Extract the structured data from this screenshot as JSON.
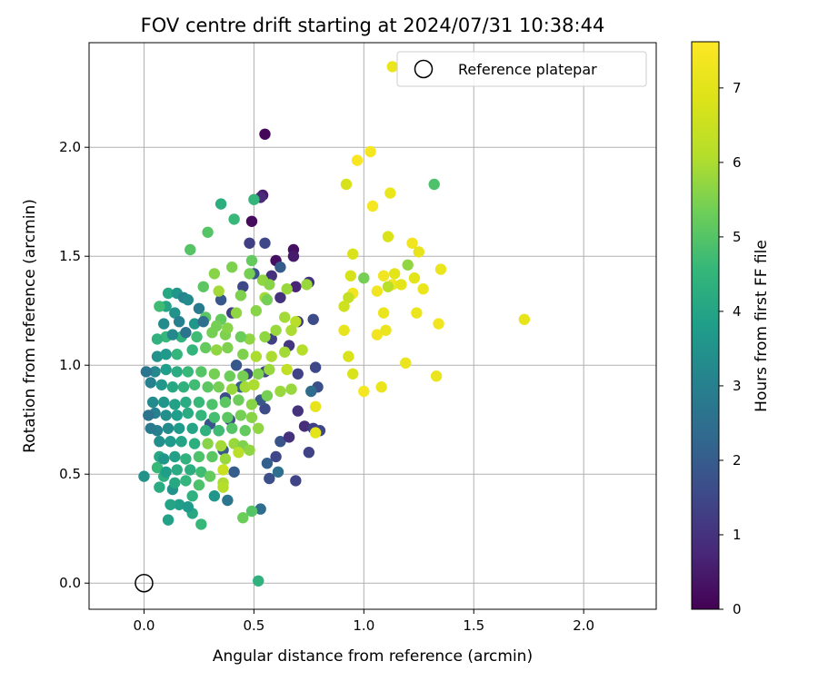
{
  "chart_data": {
    "type": "scatter",
    "title": "FOV centre drift starting at 2024/07/31 10:38:44",
    "xlabel": "Angular distance from reference (arcmin)",
    "ylabel": "Rotation from reference (arcmin)",
    "xlim": [
      -0.25,
      2.33
    ],
    "ylim": [
      -0.12,
      2.48
    ],
    "xticks": [
      "0.0",
      "0.5",
      "1.0",
      "1.5",
      "2.0"
    ],
    "yticks": [
      "0.0",
      "0.5",
      "1.0",
      "1.5",
      "2.0"
    ],
    "grid": true,
    "legend": {
      "placement": "top-right",
      "label": "Reference platepar"
    },
    "colorbar": {
      "label": "Hours from first FF file",
      "range": [
        0,
        7.62
      ],
      "ticks": [
        "0",
        "1",
        "2",
        "3",
        "4",
        "5",
        "6",
        "7"
      ],
      "colormap": "viridis"
    },
    "reference_point": {
      "x": 0.0,
      "y": 0.0
    },
    "points": [
      {
        "x": 0.55,
        "y": 2.06,
        "h": 0.1
      },
      {
        "x": 0.49,
        "y": 1.66,
        "h": 0.2
      },
      {
        "x": 0.6,
        "y": 1.48,
        "h": 0.3
      },
      {
        "x": 0.68,
        "y": 1.53,
        "h": 0.3
      },
      {
        "x": 0.68,
        "y": 1.5,
        "h": 0.5
      },
      {
        "x": 0.54,
        "y": 1.78,
        "h": 0.5
      },
      {
        "x": 0.53,
        "y": 1.77,
        "h": 0.8
      },
      {
        "x": 0.48,
        "y": 1.56,
        "h": 1.3
      },
      {
        "x": 0.55,
        "y": 1.56,
        "h": 1.5
      },
      {
        "x": 0.58,
        "y": 1.41,
        "h": 1.0
      },
      {
        "x": 0.69,
        "y": 1.36,
        "h": 0.7
      },
      {
        "x": 0.75,
        "y": 1.38,
        "h": 1.0
      },
      {
        "x": 0.7,
        "y": 1.2,
        "h": 1.2
      },
      {
        "x": 0.77,
        "y": 1.21,
        "h": 1.6
      },
      {
        "x": 0.62,
        "y": 1.31,
        "h": 1.0
      },
      {
        "x": 0.62,
        "y": 1.45,
        "h": 2.0
      },
      {
        "x": 0.5,
        "y": 1.42,
        "h": 1.8
      },
      {
        "x": 0.45,
        "y": 1.36,
        "h": 1.5
      },
      {
        "x": 0.4,
        "y": 1.24,
        "h": 1.3
      },
      {
        "x": 0.35,
        "y": 1.3,
        "h": 1.9
      },
      {
        "x": 0.58,
        "y": 1.12,
        "h": 1.3
      },
      {
        "x": 0.66,
        "y": 1.09,
        "h": 1.1
      },
      {
        "x": 0.7,
        "y": 0.96,
        "h": 1.4
      },
      {
        "x": 0.78,
        "y": 0.99,
        "h": 1.5
      },
      {
        "x": 0.79,
        "y": 0.9,
        "h": 1.7
      },
      {
        "x": 0.76,
        "y": 0.88,
        "h": 2.4
      },
      {
        "x": 0.7,
        "y": 0.79,
        "h": 1.0
      },
      {
        "x": 0.73,
        "y": 0.72,
        "h": 0.9
      },
      {
        "x": 0.77,
        "y": 0.71,
        "h": 1.3
      },
      {
        "x": 0.8,
        "y": 0.7,
        "h": 1.5
      },
      {
        "x": 0.75,
        "y": 0.6,
        "h": 1.4
      },
      {
        "x": 0.62,
        "y": 0.65,
        "h": 1.8
      },
      {
        "x": 0.6,
        "y": 0.58,
        "h": 1.5
      },
      {
        "x": 0.66,
        "y": 0.67,
        "h": 1.0
      },
      {
        "x": 0.55,
        "y": 0.8,
        "h": 1.6
      },
      {
        "x": 0.53,
        "y": 0.84,
        "h": 1.9
      },
      {
        "x": 0.55,
        "y": 0.97,
        "h": 1.5
      },
      {
        "x": 0.47,
        "y": 0.96,
        "h": 1.5
      },
      {
        "x": 0.42,
        "y": 1.0,
        "h": 1.9
      },
      {
        "x": 0.44,
        "y": 0.9,
        "h": 2.1
      },
      {
        "x": 0.37,
        "y": 0.85,
        "h": 1.6
      },
      {
        "x": 0.39,
        "y": 0.75,
        "h": 1.6
      },
      {
        "x": 0.34,
        "y": 0.7,
        "h": 2.2
      },
      {
        "x": 0.3,
        "y": 0.73,
        "h": 1.8
      },
      {
        "x": 0.36,
        "y": 0.61,
        "h": 1.9
      },
      {
        "x": 0.41,
        "y": 0.51,
        "h": 2.0
      },
      {
        "x": 0.56,
        "y": 0.55,
        "h": 2.1
      },
      {
        "x": 0.57,
        "y": 0.48,
        "h": 1.7
      },
      {
        "x": 0.61,
        "y": 0.51,
        "h": 2.5
      },
      {
        "x": 0.69,
        "y": 0.47,
        "h": 1.4
      },
      {
        "x": 0.53,
        "y": 0.34,
        "h": 2.4
      },
      {
        "x": 0.45,
        "y": 0.3,
        "h": 5.3
      },
      {
        "x": 0.49,
        "y": 0.33,
        "h": 5.0
      },
      {
        "x": 0.32,
        "y": 0.4,
        "h": 3.6
      },
      {
        "x": 0.38,
        "y": 0.38,
        "h": 2.7
      },
      {
        "x": 0.26,
        "y": 0.27,
        "h": 4.6
      },
      {
        "x": 0.22,
        "y": 0.32,
        "h": 4.1
      },
      {
        "x": 0.16,
        "y": 0.36,
        "h": 3.8
      },
      {
        "x": 0.12,
        "y": 0.36,
        "h": 4.0
      },
      {
        "x": 0.2,
        "y": 0.35,
        "h": 3.7
      },
      {
        "x": 0.11,
        "y": 0.29,
        "h": 3.9
      },
      {
        "x": 0.13,
        "y": 0.43,
        "h": 3.5
      },
      {
        "x": 0.07,
        "y": 0.44,
        "h": 4.2
      },
      {
        "x": 0.09,
        "y": 0.49,
        "h": 4.3
      },
      {
        "x": 0.0,
        "y": 0.49,
        "h": 3.5
      },
      {
        "x": 0.06,
        "y": 0.53,
        "h": 4.6
      },
      {
        "x": 0.07,
        "y": 0.58,
        "h": 4.1
      },
      {
        "x": 0.52,
        "y": 0.01,
        "h": 4.4
      },
      {
        "x": 0.35,
        "y": 1.74,
        "h": 4.3
      },
      {
        "x": 0.5,
        "y": 1.76,
        "h": 4.5
      },
      {
        "x": 0.29,
        "y": 1.61,
        "h": 5.0
      },
      {
        "x": 0.41,
        "y": 1.67,
        "h": 4.6
      },
      {
        "x": 0.21,
        "y": 1.53,
        "h": 5.0
      },
      {
        "x": 0.49,
        "y": 1.48,
        "h": 5.2
      },
      {
        "x": 0.4,
        "y": 1.45,
        "h": 5.5
      },
      {
        "x": 0.32,
        "y": 1.42,
        "h": 5.6
      },
      {
        "x": 0.48,
        "y": 1.42,
        "h": 5.4
      },
      {
        "x": 0.54,
        "y": 1.39,
        "h": 5.7
      },
      {
        "x": 0.57,
        "y": 1.37,
        "h": 5.6
      },
      {
        "x": 0.65,
        "y": 1.35,
        "h": 5.8
      },
      {
        "x": 0.74,
        "y": 1.37,
        "h": 5.8
      },
      {
        "x": 0.55,
        "y": 1.31,
        "h": 5.9
      },
      {
        "x": 0.44,
        "y": 1.32,
        "h": 5.5
      },
      {
        "x": 0.34,
        "y": 1.34,
        "h": 5.9
      },
      {
        "x": 0.27,
        "y": 1.36,
        "h": 5.1
      },
      {
        "x": 0.28,
        "y": 1.22,
        "h": 5.1
      },
      {
        "x": 0.35,
        "y": 1.21,
        "h": 5.2
      },
      {
        "x": 0.42,
        "y": 1.24,
        "h": 5.7
      },
      {
        "x": 0.51,
        "y": 1.25,
        "h": 5.6
      },
      {
        "x": 0.56,
        "y": 1.3,
        "h": 5.4
      },
      {
        "x": 0.64,
        "y": 1.22,
        "h": 5.9
      },
      {
        "x": 0.69,
        "y": 1.2,
        "h": 6.2
      },
      {
        "x": 0.67,
        "y": 1.16,
        "h": 6.0
      },
      {
        "x": 0.6,
        "y": 1.16,
        "h": 5.8
      },
      {
        "x": 0.55,
        "y": 1.13,
        "h": 5.7
      },
      {
        "x": 0.48,
        "y": 1.12,
        "h": 5.7
      },
      {
        "x": 0.44,
        "y": 1.13,
        "h": 5.3
      },
      {
        "x": 0.37,
        "y": 1.14,
        "h": 5.5
      },
      {
        "x": 0.31,
        "y": 1.15,
        "h": 5.4
      },
      {
        "x": 0.24,
        "y": 1.13,
        "h": 4.7
      },
      {
        "x": 0.17,
        "y": 1.13,
        "h": 4.4
      },
      {
        "x": 0.1,
        "y": 1.13,
        "h": 4.6
      },
      {
        "x": 0.06,
        "y": 1.12,
        "h": 4.4
      },
      {
        "x": 0.06,
        "y": 1.04,
        "h": 3.5
      },
      {
        "x": 0.1,
        "y": 1.05,
        "h": 3.7
      },
      {
        "x": 0.15,
        "y": 1.05,
        "h": 4.5
      },
      {
        "x": 0.22,
        "y": 1.07,
        "h": 4.5
      },
      {
        "x": 0.28,
        "y": 1.08,
        "h": 5.2
      },
      {
        "x": 0.33,
        "y": 1.07,
        "h": 5.7
      },
      {
        "x": 0.38,
        "y": 1.08,
        "h": 5.5
      },
      {
        "x": 0.45,
        "y": 1.05,
        "h": 5.5
      },
      {
        "x": 0.51,
        "y": 1.04,
        "h": 6.0
      },
      {
        "x": 0.58,
        "y": 1.04,
        "h": 6.0
      },
      {
        "x": 0.64,
        "y": 1.06,
        "h": 5.9
      },
      {
        "x": 0.72,
        "y": 1.07,
        "h": 6.1
      },
      {
        "x": 0.65,
        "y": 0.98,
        "h": 6.3
      },
      {
        "x": 0.57,
        "y": 0.98,
        "h": 5.8
      },
      {
        "x": 0.52,
        "y": 0.96,
        "h": 5.5
      },
      {
        "x": 0.45,
        "y": 0.95,
        "h": 5.4
      },
      {
        "x": 0.39,
        "y": 0.95,
        "h": 5.3
      },
      {
        "x": 0.32,
        "y": 0.96,
        "h": 5.4
      },
      {
        "x": 0.26,
        "y": 0.97,
        "h": 5.0
      },
      {
        "x": 0.2,
        "y": 0.97,
        "h": 4.6
      },
      {
        "x": 0.15,
        "y": 0.97,
        "h": 4.2
      },
      {
        "x": 0.1,
        "y": 0.98,
        "h": 3.8
      },
      {
        "x": 0.05,
        "y": 0.97,
        "h": 3.2
      },
      {
        "x": 0.01,
        "y": 0.97,
        "h": 2.7
      },
      {
        "x": 0.03,
        "y": 0.92,
        "h": 3.0
      },
      {
        "x": 0.08,
        "y": 0.91,
        "h": 3.6
      },
      {
        "x": 0.13,
        "y": 0.9,
        "h": 4.1
      },
      {
        "x": 0.18,
        "y": 0.9,
        "h": 4.4
      },
      {
        "x": 0.23,
        "y": 0.91,
        "h": 4.7
      },
      {
        "x": 0.29,
        "y": 0.9,
        "h": 5.1
      },
      {
        "x": 0.34,
        "y": 0.9,
        "h": 5.4
      },
      {
        "x": 0.4,
        "y": 0.89,
        "h": 5.8
      },
      {
        "x": 0.46,
        "y": 0.9,
        "h": 5.9
      },
      {
        "x": 0.5,
        "y": 0.91,
        "h": 6.0
      },
      {
        "x": 0.62,
        "y": 0.88,
        "h": 5.8
      },
      {
        "x": 0.67,
        "y": 0.89,
        "h": 5.8
      },
      {
        "x": 0.56,
        "y": 0.86,
        "h": 5.4
      },
      {
        "x": 0.49,
        "y": 0.82,
        "h": 5.6
      },
      {
        "x": 0.43,
        "y": 0.84,
        "h": 5.3
      },
      {
        "x": 0.37,
        "y": 0.83,
        "h": 5.1
      },
      {
        "x": 0.31,
        "y": 0.82,
        "h": 4.9
      },
      {
        "x": 0.25,
        "y": 0.83,
        "h": 4.6
      },
      {
        "x": 0.19,
        "y": 0.83,
        "h": 4.2
      },
      {
        "x": 0.14,
        "y": 0.82,
        "h": 3.9
      },
      {
        "x": 0.09,
        "y": 0.83,
        "h": 3.6
      },
      {
        "x": 0.04,
        "y": 0.83,
        "h": 3.3
      },
      {
        "x": 0.05,
        "y": 0.78,
        "h": 3.0
      },
      {
        "x": 0.1,
        "y": 0.77,
        "h": 3.4
      },
      {
        "x": 0.15,
        "y": 0.77,
        "h": 3.8
      },
      {
        "x": 0.2,
        "y": 0.78,
        "h": 4.2
      },
      {
        "x": 0.26,
        "y": 0.77,
        "h": 4.5
      },
      {
        "x": 0.32,
        "y": 0.76,
        "h": 4.8
      },
      {
        "x": 0.38,
        "y": 0.76,
        "h": 5.1
      },
      {
        "x": 0.44,
        "y": 0.77,
        "h": 5.4
      },
      {
        "x": 0.49,
        "y": 0.76,
        "h": 5.6
      },
      {
        "x": 0.52,
        "y": 0.71,
        "h": 5.7
      },
      {
        "x": 0.46,
        "y": 0.7,
        "h": 5.2
      },
      {
        "x": 0.4,
        "y": 0.71,
        "h": 5.0
      },
      {
        "x": 0.34,
        "y": 0.7,
        "h": 4.7
      },
      {
        "x": 0.28,
        "y": 0.7,
        "h": 4.4
      },
      {
        "x": 0.22,
        "y": 0.71,
        "h": 4.0
      },
      {
        "x": 0.16,
        "y": 0.71,
        "h": 3.7
      },
      {
        "x": 0.11,
        "y": 0.71,
        "h": 3.3
      },
      {
        "x": 0.06,
        "y": 0.7,
        "h": 3.0
      },
      {
        "x": 0.03,
        "y": 0.71,
        "h": 2.8
      },
      {
        "x": 0.02,
        "y": 0.77,
        "h": 2.6
      },
      {
        "x": 0.07,
        "y": 0.65,
        "h": 3.4
      },
      {
        "x": 0.12,
        "y": 0.65,
        "h": 3.7
      },
      {
        "x": 0.17,
        "y": 0.65,
        "h": 4.0
      },
      {
        "x": 0.23,
        "y": 0.64,
        "h": 4.3
      },
      {
        "x": 0.29,
        "y": 0.64,
        "h": 5.6
      },
      {
        "x": 0.35,
        "y": 0.63,
        "h": 5.9
      },
      {
        "x": 0.41,
        "y": 0.64,
        "h": 5.8
      },
      {
        "x": 0.45,
        "y": 0.63,
        "h": 5.5
      },
      {
        "x": 0.48,
        "y": 0.61,
        "h": 5.7
      },
      {
        "x": 0.43,
        "y": 0.6,
        "h": 6.2
      },
      {
        "x": 0.37,
        "y": 0.57,
        "h": 5.8
      },
      {
        "x": 0.31,
        "y": 0.58,
        "h": 5.1
      },
      {
        "x": 0.25,
        "y": 0.58,
        "h": 4.9
      },
      {
        "x": 0.19,
        "y": 0.57,
        "h": 4.4
      },
      {
        "x": 0.14,
        "y": 0.58,
        "h": 3.9
      },
      {
        "x": 0.09,
        "y": 0.57,
        "h": 3.6
      },
      {
        "x": 0.1,
        "y": 0.51,
        "h": 3.8
      },
      {
        "x": 0.15,
        "y": 0.52,
        "h": 4.2
      },
      {
        "x": 0.21,
        "y": 0.52,
        "h": 4.3
      },
      {
        "x": 0.26,
        "y": 0.51,
        "h": 4.7
      },
      {
        "x": 0.3,
        "y": 0.49,
        "h": 5.2
      },
      {
        "x": 0.36,
        "y": 0.52,
        "h": 6.5
      },
      {
        "x": 0.36,
        "y": 0.46,
        "h": 6.0
      },
      {
        "x": 0.36,
        "y": 0.44,
        "h": 6.1
      },
      {
        "x": 0.25,
        "y": 0.45,
        "h": 4.9
      },
      {
        "x": 0.19,
        "y": 0.47,
        "h": 4.5
      },
      {
        "x": 0.14,
        "y": 0.46,
        "h": 4.1
      },
      {
        "x": 0.22,
        "y": 0.4,
        "h": 4.4
      },
      {
        "x": 0.11,
        "y": 1.33,
        "h": 4.1
      },
      {
        "x": 0.15,
        "y": 1.33,
        "h": 3.6
      },
      {
        "x": 0.18,
        "y": 1.31,
        "h": 3.1
      },
      {
        "x": 0.1,
        "y": 1.27,
        "h": 4.0
      },
      {
        "x": 0.07,
        "y": 1.27,
        "h": 4.7
      },
      {
        "x": 0.2,
        "y": 1.3,
        "h": 3.3
      },
      {
        "x": 0.25,
        "y": 1.26,
        "h": 2.8
      },
      {
        "x": 0.14,
        "y": 1.24,
        "h": 3.5
      },
      {
        "x": 0.16,
        "y": 1.2,
        "h": 3.0
      },
      {
        "x": 0.09,
        "y": 1.19,
        "h": 3.3
      },
      {
        "x": 0.23,
        "y": 1.19,
        "h": 3.6
      },
      {
        "x": 0.27,
        "y": 1.2,
        "h": 2.5
      },
      {
        "x": 0.19,
        "y": 1.15,
        "h": 2.6
      },
      {
        "x": 0.13,
        "y": 1.14,
        "h": 3.2
      },
      {
        "x": 0.33,
        "y": 1.18,
        "h": 5.4
      },
      {
        "x": 0.38,
        "y": 1.17,
        "h": 5.6
      },
      {
        "x": 0.97,
        "y": 1.94,
        "h": 7.5
      },
      {
        "x": 1.03,
        "y": 1.98,
        "h": 7.4
      },
      {
        "x": 0.92,
        "y": 1.83,
        "h": 6.7
      },
      {
        "x": 1.12,
        "y": 1.79,
        "h": 7.2
      },
      {
        "x": 1.04,
        "y": 1.73,
        "h": 7.4
      },
      {
        "x": 1.32,
        "y": 1.83,
        "h": 4.9
      },
      {
        "x": 1.11,
        "y": 1.59,
        "h": 6.8
      },
      {
        "x": 1.22,
        "y": 1.56,
        "h": 7.3
      },
      {
        "x": 1.25,
        "y": 1.52,
        "h": 7.1
      },
      {
        "x": 0.95,
        "y": 1.51,
        "h": 6.8
      },
      {
        "x": 1.2,
        "y": 1.46,
        "h": 5.7
      },
      {
        "x": 1.35,
        "y": 1.44,
        "h": 7.2
      },
      {
        "x": 1.14,
        "y": 1.42,
        "h": 7.0
      },
      {
        "x": 1.09,
        "y": 1.41,
        "h": 7.3
      },
      {
        "x": 0.94,
        "y": 1.41,
        "h": 6.7
      },
      {
        "x": 1.0,
        "y": 1.4,
        "h": 5.4
      },
      {
        "x": 1.23,
        "y": 1.4,
        "h": 7.0
      },
      {
        "x": 1.13,
        "y": 1.37,
        "h": 7.3
      },
      {
        "x": 1.11,
        "y": 1.36,
        "h": 6.2
      },
      {
        "x": 1.17,
        "y": 1.37,
        "h": 7.0
      },
      {
        "x": 1.27,
        "y": 1.35,
        "h": 7.2
      },
      {
        "x": 1.06,
        "y": 1.34,
        "h": 7.3
      },
      {
        "x": 0.95,
        "y": 1.33,
        "h": 7.3
      },
      {
        "x": 0.93,
        "y": 1.31,
        "h": 6.4
      },
      {
        "x": 0.91,
        "y": 1.27,
        "h": 6.6
      },
      {
        "x": 1.09,
        "y": 1.24,
        "h": 7.2
      },
      {
        "x": 1.24,
        "y": 1.24,
        "h": 7.2
      },
      {
        "x": 1.34,
        "y": 1.19,
        "h": 7.3
      },
      {
        "x": 1.73,
        "y": 1.21,
        "h": 7.1
      },
      {
        "x": 0.91,
        "y": 1.16,
        "h": 7.1
      },
      {
        "x": 1.06,
        "y": 1.14,
        "h": 7.3
      },
      {
        "x": 1.1,
        "y": 1.16,
        "h": 7.2
      },
      {
        "x": 0.93,
        "y": 1.04,
        "h": 6.8
      },
      {
        "x": 1.19,
        "y": 1.01,
        "h": 7.2
      },
      {
        "x": 0.95,
        "y": 0.96,
        "h": 6.8
      },
      {
        "x": 1.33,
        "y": 0.95,
        "h": 7.2
      },
      {
        "x": 1.0,
        "y": 0.88,
        "h": 7.4
      },
      {
        "x": 1.08,
        "y": 0.9,
        "h": 7.2
      },
      {
        "x": 0.78,
        "y": 0.81,
        "h": 7.1
      },
      {
        "x": 0.78,
        "y": 0.69,
        "h": 7.0
      },
      {
        "x": 1.13,
        "y": 2.37,
        "h": 7.2
      }
    ]
  }
}
